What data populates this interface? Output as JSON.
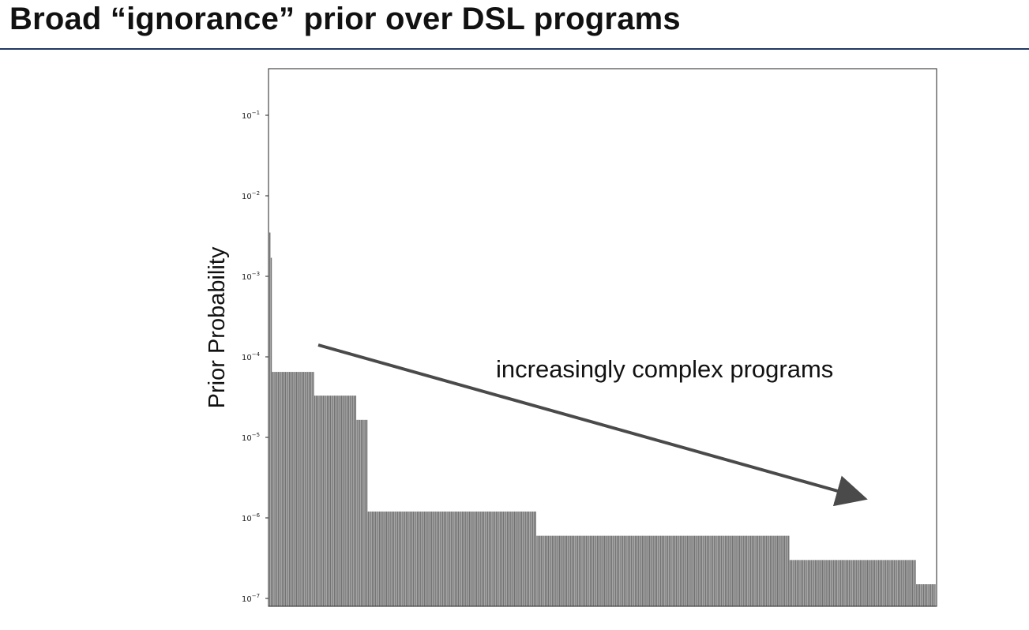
{
  "slide": {
    "title": "Broad “ignorance” prior over DSL programs"
  },
  "chart_data": {
    "type": "bar",
    "title": "",
    "xlabel": "",
    "ylabel": "Prior Probability",
    "yscale": "log",
    "ylim": [
      7e-08,
      0.4
    ],
    "yticks": [
      {
        "base": "10",
        "exp": "−1",
        "value": 0.1
      },
      {
        "base": "10",
        "exp": "−2",
        "value": 0.01
      },
      {
        "base": "10",
        "exp": "−3",
        "value": 0.001
      },
      {
        "base": "10",
        "exp": "−4",
        "value": 0.0001
      },
      {
        "base": "10",
        "exp": "−5",
        "value": 1e-05
      },
      {
        "base": "10",
        "exp": "−6",
        "value": 1e-06
      },
      {
        "base": "10",
        "exp": "−7",
        "value": 1e-07
      }
    ],
    "color": "#737373",
    "annotation": "increasingly complex programs",
    "groups": [
      {
        "count": 1,
        "value": 0.0035
      },
      {
        "count": 1,
        "value": 0.0017
      },
      {
        "count": 30,
        "value": 6.5e-05
      },
      {
        "count": 30,
        "value": 3.3e-05
      },
      {
        "count": 8,
        "value": 1.65e-05
      },
      {
        "count": 120,
        "value": 1.2e-06
      },
      {
        "count": 180,
        "value": 6e-07
      },
      {
        "count": 90,
        "value": 3e-07
      },
      {
        "count": 14,
        "value": 1.5e-07
      }
    ]
  }
}
